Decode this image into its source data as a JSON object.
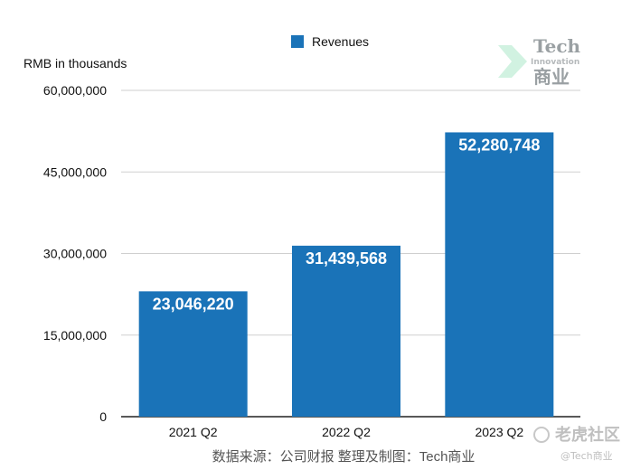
{
  "chart_data": {
    "type": "bar",
    "categories": [
      "2021 Q2",
      "2022 Q2",
      "2023 Q2"
    ],
    "series": [
      {
        "name": "Revenues",
        "values": [
          23046220,
          31439568,
          52280748
        ]
      }
    ],
    "data_labels": [
      "23,046,220",
      "31,439,568",
      "52,280,748"
    ],
    "ylabel": "RMB in thousands",
    "ylim": [
      0,
      60000000
    ],
    "yticks": [
      0,
      15000000,
      30000000,
      45000000,
      60000000
    ],
    "ytick_labels": [
      "0",
      "15,000,000",
      "30,000,000",
      "45,000,000",
      "60,000,000"
    ],
    "grid": true,
    "legend_position": "top",
    "bar_color": "#1a73b8",
    "source": "数据来源：公司财报 整理及制图：Tech商业"
  },
  "watermark": {
    "brand_en": "Tech",
    "brand_sub": "Innovation",
    "brand_cn": "商业",
    "laohu_name": "老虎社区",
    "laohu_handle": "@Tech商业",
    "icon": "tiger-community-icon"
  }
}
